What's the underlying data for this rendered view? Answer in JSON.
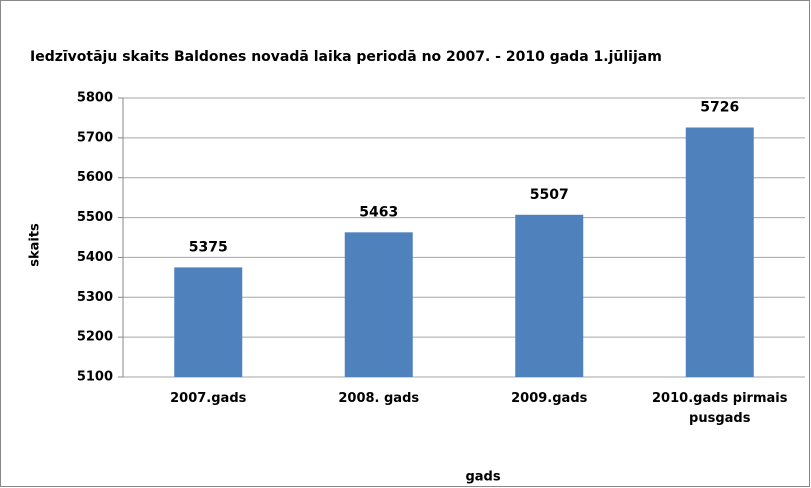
{
  "chart_data": {
    "type": "bar",
    "title": "Iedzīvotāju skaits  Baldones novadā laika periodā no 2007. - 2010 gada 1.jūlijam",
    "x_label": "gads",
    "y_label": "skaits",
    "categories": [
      "2007.gads",
      "2008. gads",
      "2009.gads",
      "2010.gads pirmais pusgads"
    ],
    "values": [
      5375,
      5463,
      5507,
      5726
    ],
    "color": "#4f81bd",
    "ylim": [
      5100,
      5800
    ],
    "yticks": [
      5100,
      5200,
      5300,
      5400,
      5500,
      5600,
      5700,
      5800
    ],
    "grid": true
  }
}
